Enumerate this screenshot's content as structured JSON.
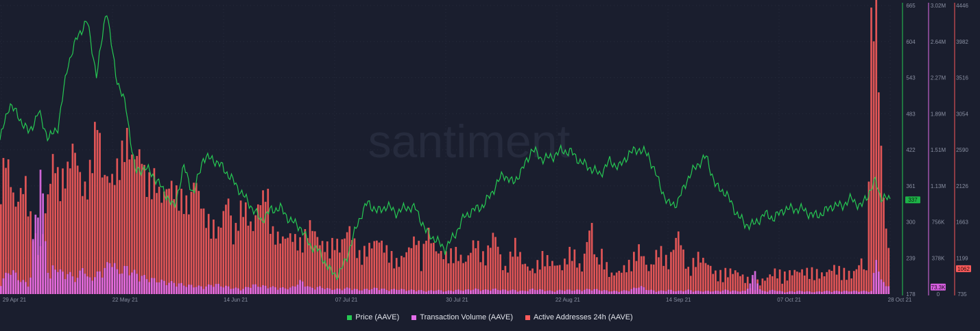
{
  "watermark": "santiment",
  "legend": [
    {
      "label": "Price (AAVE)",
      "color": "#26c953"
    },
    {
      "label": "Transaction Volume (AAVE)",
      "color": "#e36dea"
    },
    {
      "label": "Active Addresses 24h (AAVE)",
      "color": "#ff5b5b"
    }
  ],
  "chart_data": {
    "type": "line",
    "x_tick_labels": [
      "29 Apr 21",
      "22 May 21",
      "14 Jun 21",
      "07 Jul 21",
      "30 Jul 21",
      "22 Aug 21",
      "14 Sep 21",
      "07 Oct 21",
      "28 Oct 21"
    ],
    "axes": {
      "price": {
        "ticks": [
          "665",
          "604",
          "543",
          "483",
          "422",
          "361",
          "300",
          "239",
          "178"
        ],
        "ylim": [
          178,
          665
        ],
        "current_label": "337",
        "color": "#26c953"
      },
      "volume": {
        "ticks": [
          "3.02M",
          "2.64M",
          "2.27M",
          "1.89M",
          "1.51M",
          "1.13M",
          "756K",
          "378K",
          "0"
        ],
        "ylim": [
          0,
          3020000
        ],
        "current_label": "73.3K",
        "color": "#e36dea"
      },
      "addresses": {
        "ticks": [
          "4446",
          "3982",
          "3516",
          "3054",
          "2590",
          "2126",
          "1663",
          "1199",
          "735"
        ],
        "ylim": [
          735,
          4446
        ],
        "current_label": "1062",
        "color": "#ff5b5b"
      }
    },
    "series": [
      {
        "name": "Price (AAVE)",
        "type": "line",
        "axis": "price",
        "x_days": [
          0,
          2,
          4,
          6,
          8,
          10,
          12,
          14,
          16,
          18,
          20,
          22,
          23,
          24,
          26,
          28,
          30,
          32,
          34,
          36,
          38,
          40,
          42,
          44,
          46,
          48,
          50,
          52,
          54,
          56,
          58,
          60,
          62,
          64,
          66,
          68,
          70,
          72,
          74,
          76,
          78,
          80,
          82,
          84,
          86,
          88,
          90,
          92,
          94,
          96,
          98,
          100,
          102,
          104,
          106,
          108,
          110,
          112,
          114,
          116,
          118,
          120,
          122,
          124,
          126,
          128,
          130,
          132,
          134,
          136,
          138,
          140,
          142,
          144,
          146,
          148,
          150,
          152,
          154,
          156,
          158,
          160,
          162,
          164,
          166,
          168,
          170,
          172,
          174,
          176,
          178,
          180,
          181,
          182,
          184
        ],
        "values": [
          438,
          500,
          475,
          450,
          485,
          440,
          460,
          565,
          612,
          640,
          545,
          662,
          600,
          545,
          495,
          383,
          392,
          375,
          350,
          323,
          393,
          346,
          408,
          406,
          392,
          371,
          348,
          325,
          302,
          320,
          323,
          302,
          292,
          261,
          250,
          219,
          209,
          247,
          300,
          333,
          317,
          327,
          315,
          325,
          322,
          284,
          270,
          254,
          278,
          309,
          320,
          328,
          354,
          381,
          365,
          388,
          423,
          406,
          409,
          420,
          418,
          401,
          391,
          380,
          402,
          392,
          415,
          423,
          413,
          371,
          330,
          331,
          371,
          395,
          410,
          359,
          349,
          318,
          295,
          296,
          313,
          306,
          321,
          322,
          321,
          310,
          314,
          327,
          327,
          339,
          325,
          355,
          369,
          342,
          337
        ]
      },
      {
        "name": "Active Addresses 24h (AAVE)",
        "type": "bar",
        "axis": "addresses",
        "x_days": [
          0,
          1,
          3,
          5,
          6,
          8,
          11,
          12,
          14,
          15,
          17,
          18,
          20,
          21,
          23,
          24,
          26,
          27,
          29,
          30,
          32,
          33,
          35,
          36,
          38,
          39,
          40,
          42,
          45,
          47,
          48,
          50,
          52,
          53,
          55,
          56,
          58,
          60,
          62,
          64,
          66,
          68,
          69,
          70,
          72,
          74,
          76,
          78,
          80,
          82,
          84,
          86,
          87,
          88,
          90,
          92,
          94,
          96,
          98,
          100,
          102,
          104,
          105,
          106,
          108,
          110,
          112,
          114,
          116,
          118,
          120,
          122,
          123,
          124,
          126,
          128,
          130,
          132,
          134,
          136,
          138,
          140,
          142,
          144,
          146,
          148,
          150,
          152,
          154,
          156,
          158,
          160,
          162,
          164,
          166,
          168,
          170,
          172,
          174,
          176,
          178,
          179,
          180,
          181,
          182,
          183,
          184
        ],
        "values": [
          2100,
          2500,
          1800,
          2150,
          1700,
          1200,
          2500,
          2100,
          2300,
          2600,
          2000,
          2100,
          3000,
          2200,
          2150,
          2300,
          2700,
          2400,
          2500,
          2100,
          2200,
          1900,
          2100,
          2000,
          1900,
          1800,
          2200,
          1700,
          1500,
          1950,
          1400,
          1900,
          1500,
          1800,
          2050,
          1500,
          1400,
          1450,
          1350,
          1600,
          1350,
          1300,
          1400,
          1300,
          1550,
          1200,
          1300,
          1400,
          1250,
          1100,
          1250,
          1450,
          1100,
          1550,
          1250,
          1200,
          1250,
          1100,
          1400,
          1150,
          1500,
          1000,
          1100,
          1400,
          1100,
          1000,
          1200,
          1100,
          1050,
          1300,
          1000,
          1650,
          1100,
          1250,
          950,
          1000,
          1100,
          1300,
          1000,
          1300,
          1100,
          1500,
          1000,
          1200,
          1100,
          950,
          1000,
          1000,
          900,
          850,
          900,
          1000,
          950,
          1000,
          1000,
          1000,
          950,
          1050,
          1000,
          950,
          1150,
          950,
          4400,
          4350,
          2400,
          1500,
          1062
        ]
      },
      {
        "name": "Transaction Volume (AAVE)",
        "type": "bar",
        "axis": "volume",
        "x_days": [
          0,
          2,
          4,
          6,
          8,
          10,
          11,
          12,
          14,
          16,
          17,
          18,
          20,
          22,
          23,
          24,
          26,
          28,
          30,
          32,
          34,
          36,
          38,
          40,
          42,
          44,
          46,
          48,
          50,
          52,
          54,
          56,
          58,
          60,
          62,
          64,
          66,
          68,
          70,
          72,
          74,
          76,
          78,
          80,
          82,
          84,
          86,
          88,
          90,
          92,
          94,
          96,
          98,
          100,
          102,
          104,
          106,
          108,
          110,
          112,
          114,
          116,
          118,
          120,
          122,
          124,
          126,
          128,
          130,
          132,
          134,
          136,
          138,
          140,
          142,
          144,
          146,
          148,
          150,
          152,
          154,
          156,
          157,
          158,
          160,
          162,
          164,
          166,
          168,
          170,
          172,
          174,
          176,
          178,
          180,
          181,
          182,
          184
        ],
        "values": [
          120000,
          250000,
          140000,
          90000,
          1300000,
          90000,
          320000,
          220000,
          200000,
          150000,
          310000,
          140000,
          200000,
          280000,
          360000,
          220000,
          260000,
          200000,
          160000,
          140000,
          120000,
          110000,
          90000,
          80000,
          70000,
          100000,
          80000,
          60000,
          50000,
          90000,
          80000,
          70000,
          60000,
          60000,
          130000,
          60000,
          70000,
          50000,
          50000,
          60000,
          40000,
          50000,
          60000,
          40000,
          50000,
          40000,
          40000,
          30000,
          40000,
          30000,
          40000,
          40000,
          50000,
          40000,
          50000,
          40000,
          40000,
          30000,
          50000,
          40000,
          30000,
          40000,
          40000,
          40000,
          50000,
          40000,
          30000,
          30000,
          40000,
          80000,
          40000,
          30000,
          40000,
          30000,
          40000,
          30000,
          30000,
          30000,
          40000,
          30000,
          30000,
          230000,
          30000,
          30000,
          40000,
          20000,
          30000,
          30000,
          20000,
          30000,
          30000,
          30000,
          30000,
          30000,
          30000,
          400000,
          120000,
          73300
        ]
      }
    ]
  }
}
